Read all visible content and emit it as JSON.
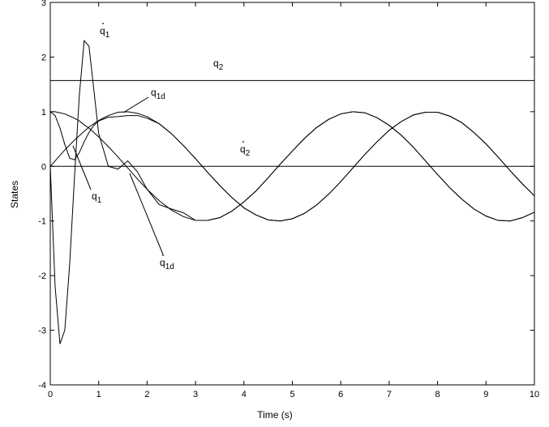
{
  "chart_data": {
    "type": "line",
    "xlabel": "Time (s)",
    "ylabel": "States",
    "xlim": [
      0,
      10
    ],
    "ylim": [
      -4,
      3
    ],
    "xticks": [
      0,
      1,
      2,
      3,
      4,
      5,
      6,
      7,
      8,
      9,
      10
    ],
    "yticks": [
      -4,
      -3,
      -2,
      -1,
      0,
      1,
      2,
      3
    ],
    "x": [
      0,
      0.1,
      0.2,
      0.3,
      0.4,
      0.5,
      0.6,
      0.7,
      0.8,
      0.9,
      1.0,
      1.2,
      1.4,
      1.6,
      1.8,
      2.0,
      2.25,
      2.5,
      2.75,
      3.0,
      3.25,
      3.5,
      3.75,
      4.0,
      4.25,
      4.5,
      4.75,
      5.0,
      5.25,
      5.5,
      5.75,
      6.0,
      6.25,
      6.5,
      6.75,
      7.0,
      7.25,
      7.5,
      7.75,
      8.0,
      8.25,
      8.5,
      8.75,
      9.0,
      9.25,
      9.5,
      9.75,
      10
    ],
    "series": [
      {
        "color": "#000000",
        "values": [
          0,
          0.1,
          0.2,
          0.3,
          0.39,
          0.48,
          0.56,
          0.64,
          0.72,
          0.78,
          0.84,
          0.93,
          0.99,
          1.0,
          0.97,
          0.91,
          0.78,
          0.6,
          0.38,
          0.14,
          -0.11,
          -0.35,
          -0.57,
          -0.76,
          -0.89,
          -0.98,
          -1.0,
          -0.96,
          -0.86,
          -0.71,
          -0.51,
          -0.28,
          -0.03,
          0.22,
          0.45,
          0.66,
          0.82,
          0.94,
          0.99,
          0.99,
          0.92,
          0.8,
          0.62,
          0.41,
          0.17,
          -0.08,
          -0.32,
          -0.54
        ]
      },
      {
        "color": "#000000",
        "values": [
          1.0,
          0.93,
          0.7,
          0.4,
          0.15,
          0.12,
          0.25,
          0.45,
          0.62,
          0.75,
          0.83,
          0.9,
          0.91,
          0.93,
          0.93,
          0.88,
          0.78,
          0.6,
          0.38,
          0.14,
          -0.11,
          -0.35,
          -0.57,
          -0.76,
          -0.89,
          -0.98,
          -1.0,
          -0.96,
          -0.86,
          -0.71,
          -0.51,
          -0.28,
          -0.03,
          0.22,
          0.45,
          0.66,
          0.82,
          0.94,
          0.99,
          0.99,
          0.92,
          0.8,
          0.62,
          0.41,
          0.17,
          -0.08,
          -0.32,
          -0.54
        ]
      },
      {
        "color": "#000000",
        "values": [
          1.0,
          1.0,
          0.98,
          0.96,
          0.92,
          0.88,
          0.83,
          0.76,
          0.7,
          0.62,
          0.54,
          0.36,
          0.17,
          -0.03,
          -0.23,
          -0.42,
          -0.63,
          -0.8,
          -0.92,
          -0.99,
          -0.99,
          -0.94,
          -0.82,
          -0.65,
          -0.45,
          -0.21,
          0.04,
          0.28,
          0.51,
          0.71,
          0.86,
          0.96,
          1.0,
          0.98,
          0.89,
          0.75,
          0.57,
          0.35,
          0.1,
          -0.15,
          -0.39,
          -0.6,
          -0.78,
          -0.91,
          -0.99,
          -1.0,
          -0.94,
          -0.84
        ]
      },
      {
        "color": "#000000",
        "values": [
          0,
          -2.2,
          -3.25,
          -3.0,
          -1.8,
          -0.2,
          1.3,
          2.3,
          2.2,
          1.4,
          0.6,
          0.0,
          -0.05,
          0.1,
          -0.1,
          -0.42,
          -0.7,
          -0.78,
          -0.85,
          -0.99,
          -0.99,
          -0.94,
          -0.82,
          -0.65,
          -0.45,
          -0.21,
          0.04,
          0.28,
          0.51,
          0.71,
          0.86,
          0.96,
          1.0,
          0.98,
          0.89,
          0.75,
          0.57,
          0.35,
          0.1,
          -0.15,
          -0.39,
          -0.6,
          -0.78,
          -0.91,
          -0.99,
          -1.0,
          -0.94,
          -0.84
        ]
      },
      {
        "color": "#000000",
        "x": [
          0,
          10
        ],
        "values": [
          1.57,
          1.57
        ]
      },
      {
        "color": "#000000",
        "x": [
          0,
          10
        ],
        "values": [
          0,
          0
        ]
      }
    ],
    "annotations": [
      {
        "text": "q",
        "subscript": "1",
        "dot": true
      },
      {
        "text": "q",
        "subscript": "2",
        "dot": false
      },
      {
        "text": "q",
        "subscript": "1d",
        "dot": false
      },
      {
        "text": "q",
        "subscript": "2",
        "dot": true
      },
      {
        "text": "q",
        "subscript": "1",
        "dot": false
      },
      {
        "text": "q",
        "subscript": "1d",
        "dot": true
      }
    ]
  }
}
